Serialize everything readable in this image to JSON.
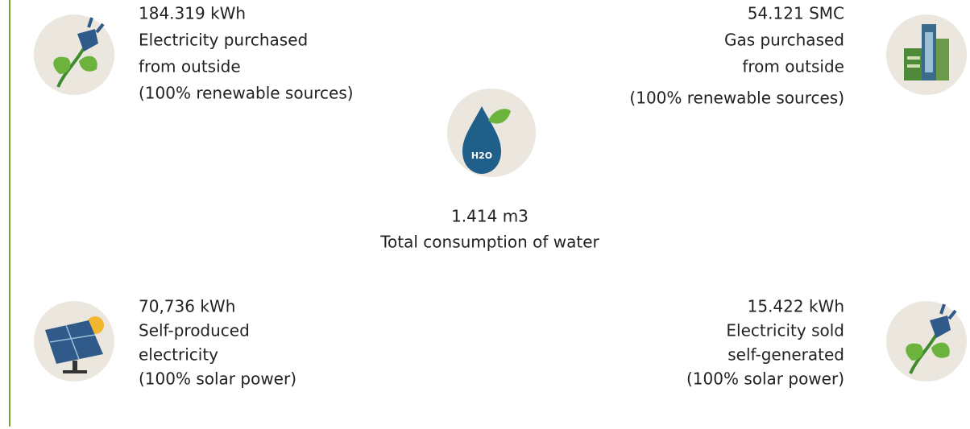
{
  "items": [
    {
      "value": "184.319 kWh",
      "lines": [
        "Electricity purchased",
        "from outside",
        "(100% renewable sources)"
      ]
    },
    {
      "value": "54.121 SMC",
      "lines": [
        "Gas purchased",
        "from outside",
        "(100% renewable sources)"
      ]
    },
    {
      "value": "1.414 m3",
      "lines": [
        "Total consumption of water"
      ]
    },
    {
      "value": "70,736 kWh",
      "lines": [
        "Self-produced",
        "electricity",
        "(100% solar power)"
      ]
    },
    {
      "value": "15.422 kWh",
      "lines": [
        "Electricity sold",
        "self-generated",
        "(100% solar power)"
      ]
    }
  ]
}
